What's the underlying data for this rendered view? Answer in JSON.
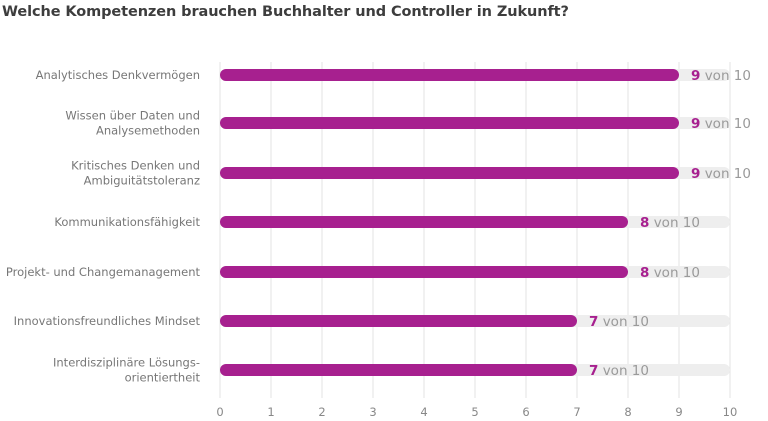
{
  "chart_data": {
    "type": "bar",
    "orientation": "horizontal",
    "title": "Welche Kompetenzen brauchen Buchhalter und Controller in Zukunft?",
    "categories": [
      [
        "Analytisches Denkvermögen"
      ],
      [
        "Wissen über Daten und",
        "Analysemethoden"
      ],
      [
        "Kritisches Denken und",
        "Ambiguitätstoleranz"
      ],
      [
        "Kommunikationsfähigkeit"
      ],
      [
        "Projekt- und Changemanagement"
      ],
      [
        "Innovationsfreundliches Mindset"
      ],
      [
        "Interdisziplinäre Lösungs-",
        "orientiertheit"
      ]
    ],
    "values": [
      9,
      9,
      9,
      8,
      8,
      7,
      7
    ],
    "max": 10,
    "value_suffix": "von 10",
    "xlim": [
      0,
      10
    ],
    "xticks": [
      "0",
      "1",
      "2",
      "3",
      "4",
      "5",
      "6",
      "7",
      "8",
      "9",
      "10"
    ],
    "grid": true,
    "bar_color": "#a7208f",
    "track_color": "#eeeeee",
    "grid_color": "#e3e3e3"
  }
}
